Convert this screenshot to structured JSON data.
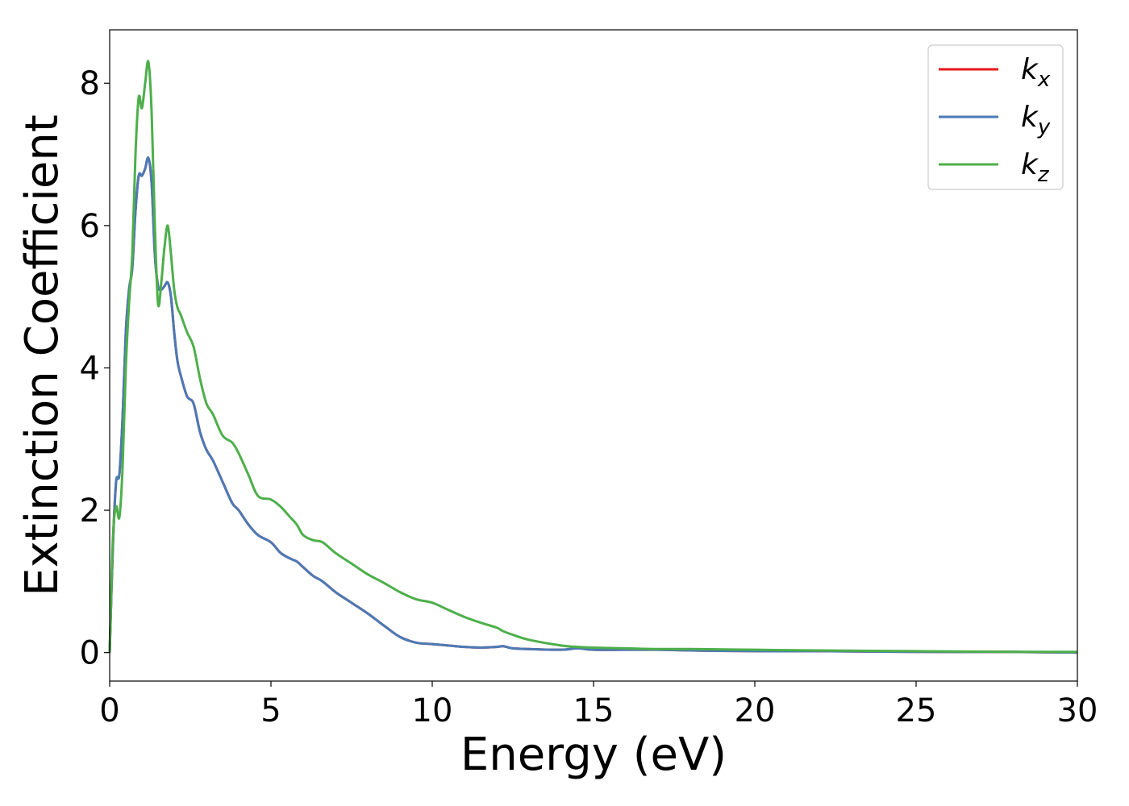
{
  "chart_data": {
    "type": "line",
    "xlabel": "Energy (eV)",
    "ylabel": "Extinction Coefficient",
    "xlim": [
      0,
      30
    ],
    "ylim": [
      -0.4,
      8.75
    ],
    "xticks": [
      0,
      5,
      10,
      15,
      20,
      25,
      30
    ],
    "yticks": [
      0,
      2,
      4,
      6,
      8
    ],
    "grid": false,
    "legend_position": "top-right",
    "series": [
      {
        "name": "k_x",
        "label_main": "k",
        "label_sub": "x",
        "color": "#e41a1c",
        "x": [
          0,
          0.1,
          0.2,
          0.3,
          0.4,
          0.5,
          0.6,
          0.7,
          0.8,
          0.9,
          1.0,
          1.1,
          1.2,
          1.3,
          1.4,
          1.5,
          1.6,
          1.7,
          1.8,
          1.9,
          2.0,
          2.1,
          2.2,
          2.4,
          2.6,
          2.8,
          3.0,
          3.2,
          3.5,
          3.8,
          4.0,
          4.3,
          4.6,
          5.0,
          5.3,
          5.6,
          5.8,
          6.0,
          6.3,
          6.6,
          7.0,
          7.5,
          8.0,
          8.5,
          9.0,
          9.5,
          10.0,
          10.5,
          11.0,
          11.5,
          12.0,
          12.2,
          12.5,
          13.0,
          14.0,
          14.5,
          15.0,
          16.0,
          17.0,
          18.0,
          20.0,
          22.0,
          25.0,
          28.0,
          30.0
        ],
        "y": [
          0,
          1.5,
          2.4,
          2.5,
          3.3,
          4.5,
          5.1,
          5.4,
          6.2,
          6.7,
          6.7,
          6.8,
          6.95,
          6.6,
          5.6,
          5.15,
          5.1,
          5.15,
          5.2,
          5.0,
          4.5,
          4.1,
          3.9,
          3.6,
          3.5,
          3.1,
          2.85,
          2.7,
          2.4,
          2.1,
          2.0,
          1.8,
          1.65,
          1.55,
          1.4,
          1.32,
          1.28,
          1.2,
          1.08,
          1.0,
          0.85,
          0.7,
          0.55,
          0.38,
          0.22,
          0.14,
          0.12,
          0.1,
          0.08,
          0.07,
          0.08,
          0.09,
          0.06,
          0.05,
          0.04,
          0.06,
          0.04,
          0.04,
          0.04,
          0.03,
          0.02,
          0.02,
          0.01,
          0.01,
          0.0
        ]
      },
      {
        "name": "k_y",
        "label_main": "k",
        "label_sub": "y",
        "color": "#4a7ab5",
        "x": [
          0,
          0.1,
          0.2,
          0.3,
          0.4,
          0.5,
          0.6,
          0.7,
          0.8,
          0.9,
          1.0,
          1.1,
          1.2,
          1.3,
          1.4,
          1.5,
          1.6,
          1.7,
          1.8,
          1.9,
          2.0,
          2.1,
          2.2,
          2.4,
          2.6,
          2.8,
          3.0,
          3.2,
          3.5,
          3.8,
          4.0,
          4.3,
          4.6,
          5.0,
          5.3,
          5.6,
          5.8,
          6.0,
          6.3,
          6.6,
          7.0,
          7.5,
          8.0,
          8.5,
          9.0,
          9.5,
          10.0,
          10.5,
          11.0,
          11.5,
          12.0,
          12.2,
          12.5,
          13.0,
          14.0,
          14.5,
          15.0,
          16.0,
          17.0,
          18.0,
          20.0,
          22.0,
          25.0,
          28.0,
          30.0
        ],
        "y": [
          0,
          1.5,
          2.4,
          2.5,
          3.3,
          4.5,
          5.1,
          5.4,
          6.2,
          6.7,
          6.7,
          6.8,
          6.95,
          6.6,
          5.6,
          5.15,
          5.1,
          5.15,
          5.2,
          5.0,
          4.5,
          4.1,
          3.9,
          3.6,
          3.5,
          3.1,
          2.85,
          2.7,
          2.4,
          2.1,
          2.0,
          1.8,
          1.65,
          1.55,
          1.4,
          1.32,
          1.28,
          1.2,
          1.08,
          1.0,
          0.85,
          0.7,
          0.55,
          0.38,
          0.22,
          0.14,
          0.12,
          0.1,
          0.08,
          0.07,
          0.08,
          0.09,
          0.06,
          0.05,
          0.04,
          0.06,
          0.04,
          0.04,
          0.04,
          0.03,
          0.02,
          0.02,
          0.01,
          0.01,
          0.0
        ]
      },
      {
        "name": "k_z",
        "label_main": "k",
        "label_sub": "z",
        "color": "#4daf4a",
        "x": [
          0,
          0.1,
          0.2,
          0.3,
          0.4,
          0.5,
          0.6,
          0.7,
          0.8,
          0.9,
          1.0,
          1.1,
          1.2,
          1.3,
          1.4,
          1.5,
          1.6,
          1.7,
          1.8,
          1.9,
          2.0,
          2.1,
          2.2,
          2.4,
          2.6,
          2.8,
          3.0,
          3.2,
          3.5,
          3.8,
          4.0,
          4.3,
          4.6,
          5.0,
          5.3,
          5.6,
          5.8,
          6.0,
          6.3,
          6.6,
          7.0,
          7.5,
          8.0,
          8.5,
          9.0,
          9.5,
          10.0,
          10.5,
          11.0,
          11.5,
          12.0,
          12.2,
          12.5,
          13.0,
          14.0,
          14.5,
          15.0,
          16.0,
          17.0,
          18.0,
          20.0,
          22.0,
          25.0,
          28.0,
          30.0
        ],
        "y": [
          0,
          1.6,
          2.05,
          1.9,
          2.6,
          4.0,
          4.9,
          5.6,
          7.0,
          7.8,
          7.65,
          8.0,
          8.3,
          7.6,
          6.0,
          4.9,
          5.2,
          5.7,
          6.0,
          5.6,
          5.1,
          4.85,
          4.75,
          4.5,
          4.3,
          3.85,
          3.5,
          3.35,
          3.05,
          2.95,
          2.8,
          2.5,
          2.2,
          2.15,
          2.05,
          1.9,
          1.8,
          1.65,
          1.58,
          1.55,
          1.4,
          1.25,
          1.1,
          0.98,
          0.85,
          0.75,
          0.7,
          0.6,
          0.5,
          0.42,
          0.35,
          0.3,
          0.25,
          0.18,
          0.1,
          0.08,
          0.07,
          0.06,
          0.05,
          0.05,
          0.04,
          0.03,
          0.02,
          0.01,
          0.01
        ]
      }
    ]
  }
}
